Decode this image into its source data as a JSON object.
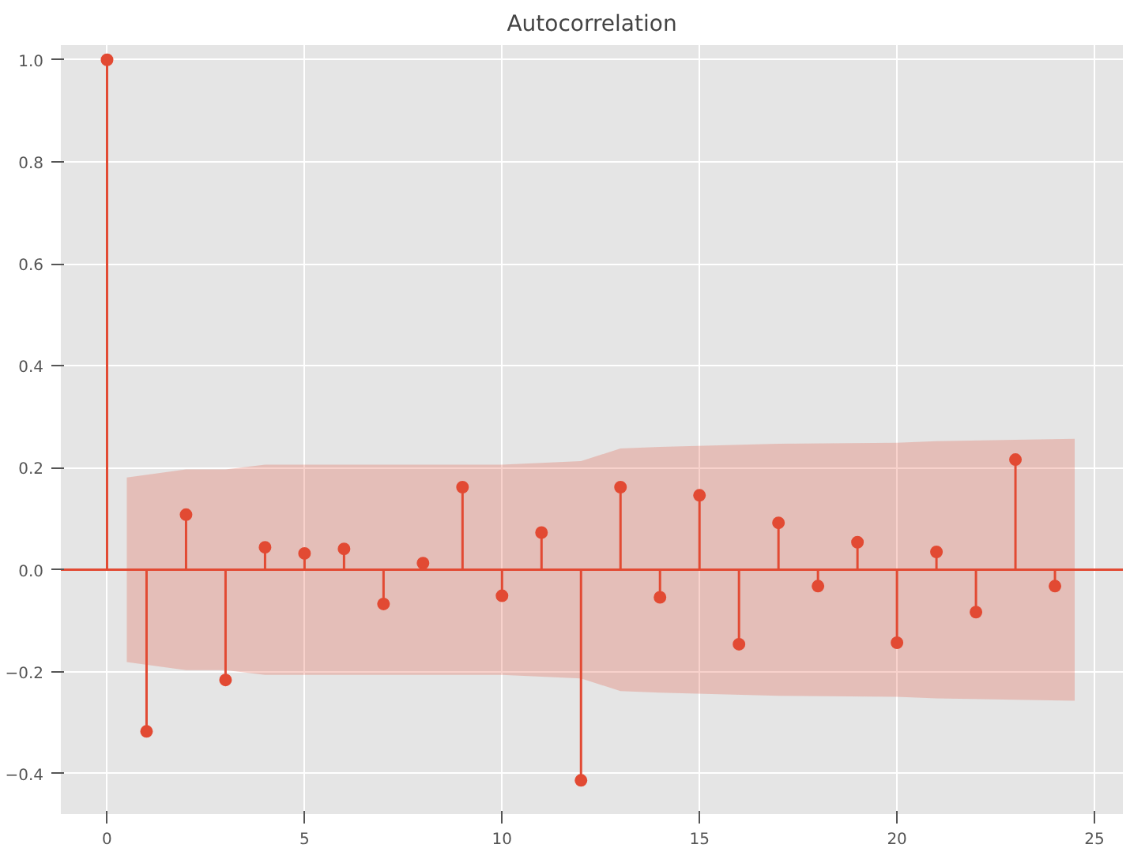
{
  "chart_data": {
    "type": "lollipop",
    "title": "Autocorrelation",
    "x": [
      0,
      1,
      2,
      3,
      4,
      5,
      6,
      7,
      8,
      9,
      10,
      11,
      12,
      13,
      14,
      15,
      16,
      17,
      18,
      19,
      20,
      21,
      22,
      23,
      24
    ],
    "series": [
      {
        "color": "#e24a33",
        "values": [
          1.0,
          -0.317,
          0.108,
          -0.216,
          0.044,
          0.032,
          0.041,
          -0.067,
          0.013,
          0.162,
          -0.051,
          0.073,
          -0.413,
          0.162,
          -0.054,
          0.146,
          -0.146,
          0.092,
          -0.032,
          0.054,
          -0.143,
          0.035,
          -0.083,
          0.216,
          -0.032
        ]
      },
      {
        "type": "line",
        "marker": "none",
        "color": "#e24a33",
        "x": [
          -1.17,
          0.5,
          2,
          3,
          4,
          10,
          12,
          13,
          14,
          17,
          20,
          21,
          24.5,
          25.72
        ],
        "values": [
          0,
          0,
          0,
          0,
          0,
          0,
          0,
          0,
          0,
          0,
          0,
          0,
          0,
          0
        ],
        "upper": [
          null,
          0.181,
          0.197,
          0.197,
          0.206,
          0.206,
          0.213,
          0.238,
          0.241,
          0.247,
          0.249,
          0.252,
          0.257,
          null
        ],
        "lower": [
          null,
          -0.181,
          -0.197,
          -0.197,
          -0.206,
          -0.206,
          -0.213,
          -0.238,
          -0.241,
          -0.247,
          -0.249,
          -0.252,
          -0.257,
          null
        ]
      }
    ],
    "xlim": [
      -1.17,
      25.72
    ],
    "ylim": [
      -0.479,
      1.029
    ],
    "xticks": [
      0,
      5,
      10,
      15,
      20,
      25
    ],
    "yticks": [
      {
        "value": -0.4,
        "label": "−0.4"
      },
      {
        "value": -0.2,
        "label": "−0.2"
      },
      {
        "value": 0,
        "label": "0.0"
      },
      {
        "value": 0.2,
        "label": "0.2"
      },
      {
        "value": 0.4,
        "label": "0.4"
      },
      {
        "value": 0.6,
        "label": "0.6"
      },
      {
        "value": 0.8,
        "label": "0.8"
      },
      {
        "value": 1.0,
        "label": "1.0"
      }
    ],
    "grid": true,
    "marker": "circle"
  }
}
